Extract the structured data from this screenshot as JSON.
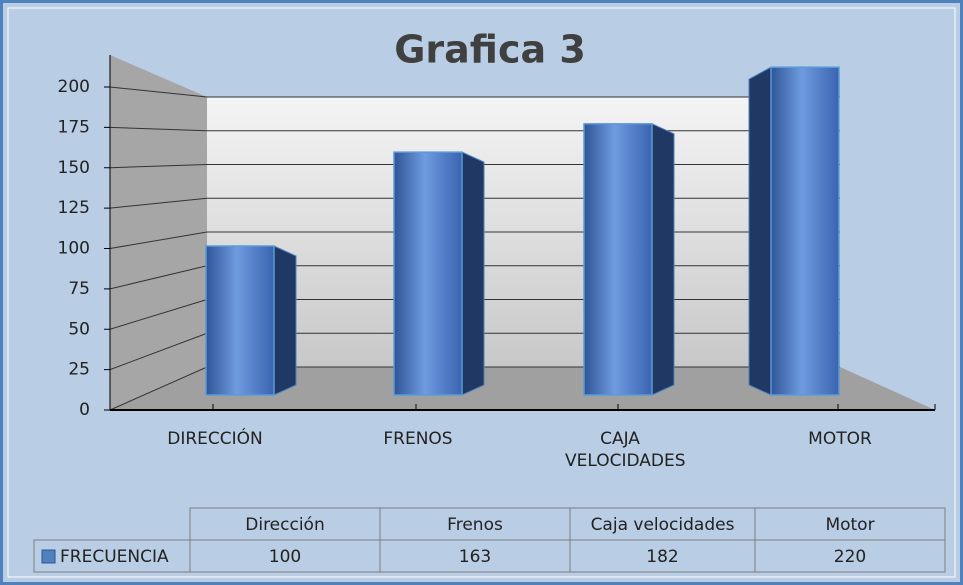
{
  "chart_data": {
    "type": "bar3d",
    "title": "Grafica 3",
    "categories": [
      "DIRECCIÓN",
      "FRENOS",
      "CAJA VELOCIDADES",
      "MOTOR"
    ],
    "series": [
      {
        "name": "FRECUENCIA",
        "color": "#4f81bd",
        "values": [
          100,
          163,
          182,
          220
        ]
      }
    ],
    "ylim": [
      0,
      200
    ],
    "yticks": [
      0,
      25,
      50,
      75,
      100,
      125,
      150,
      175,
      200
    ],
    "grid": true,
    "data_table": {
      "columns": [
        "Dirección",
        "Frenos",
        "Caja velocidades",
        "Motor"
      ]
    }
  }
}
